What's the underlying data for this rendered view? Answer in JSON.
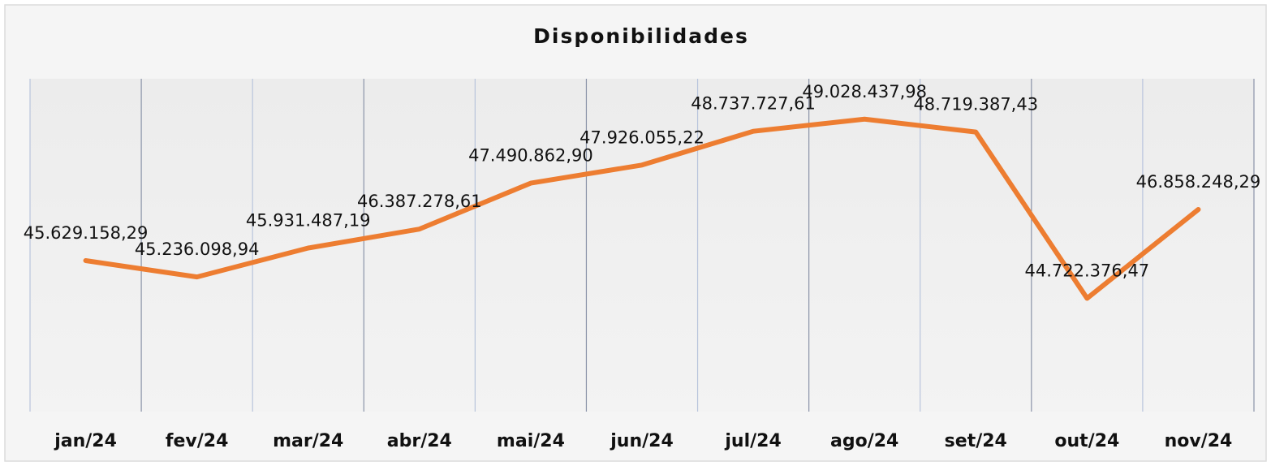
{
  "chart_data": {
    "type": "line",
    "title": "Disponibilidades",
    "categories": [
      "jan/24",
      "fev/24",
      "mar/24",
      "abr/24",
      "mai/24",
      "jun/24",
      "jul/24",
      "ago/24",
      "set/24",
      "out/24",
      "nov/24"
    ],
    "series": [
      {
        "name": "Disponibilidades",
        "color": "#ed7d31",
        "values": [
          45629158.29,
          45236098.94,
          45931487.19,
          46387278.61,
          47490862.9,
          47926055.22,
          48737727.61,
          49028437.98,
          48719387.43,
          44722376.47,
          46858248.29
        ],
        "value_labels": [
          "45.629.158,29",
          "45.236.098,94",
          "45.931.487,19",
          "46.387.278,61",
          "47.490.862,90",
          "47.926.055,22",
          "48.737.727,61",
          "49.028.437,98",
          "48.719.387,43",
          "44.722.376,47",
          "46.858.248,29"
        ]
      }
    ],
    "ylim": [
      42000000,
      50000000
    ]
  }
}
